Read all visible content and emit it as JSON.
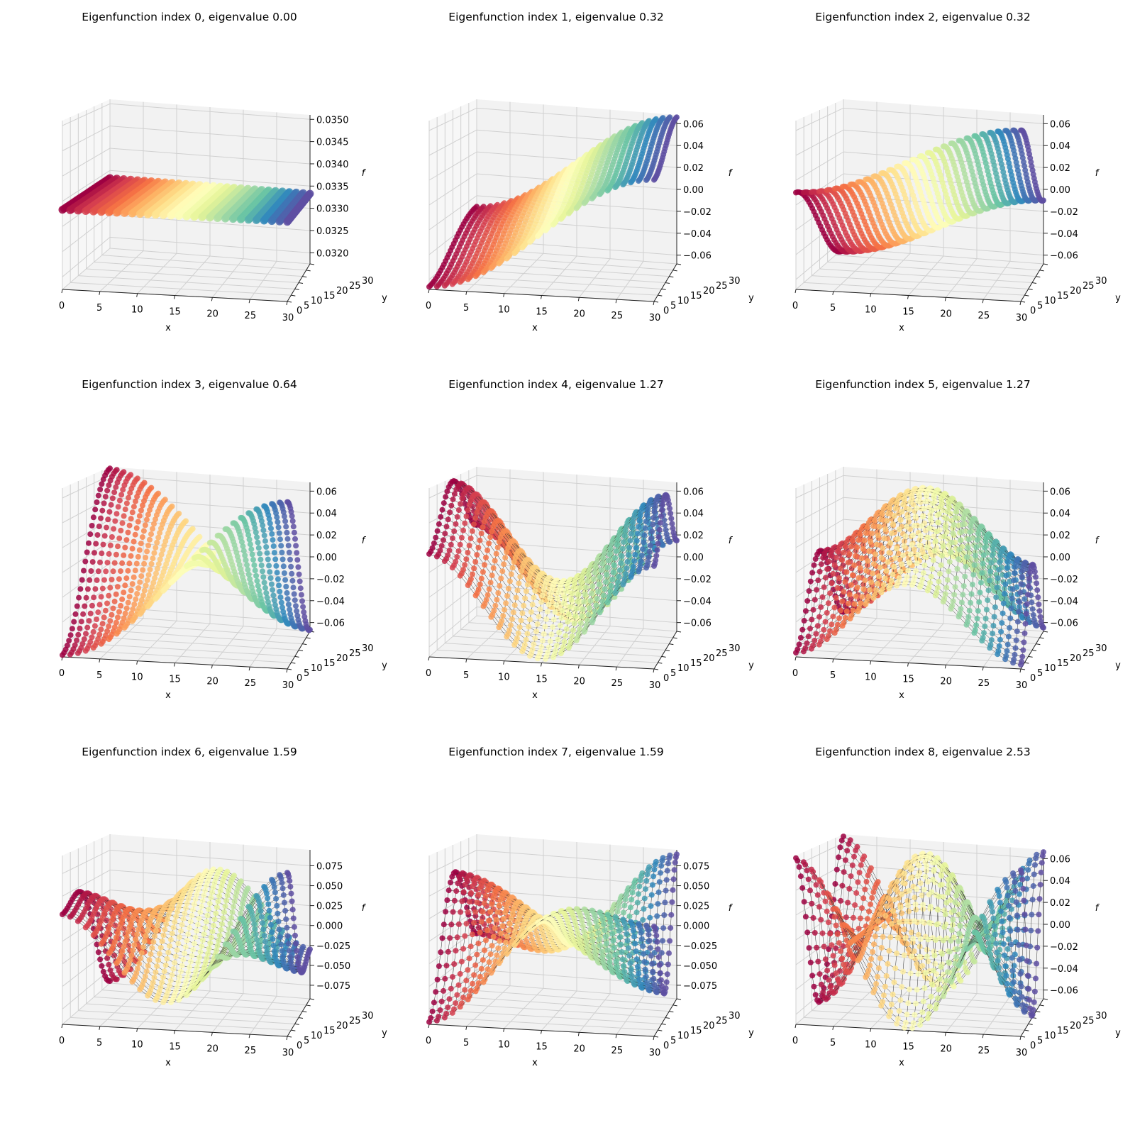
{
  "chart_data": {
    "type": "scatter",
    "subtype": "3d-scatter-grid",
    "grid_size": 30,
    "colormap": [
      "#9e0142",
      "#d53e4f",
      "#f46d43",
      "#fdae61",
      "#fee08b",
      "#ffffbf",
      "#e6f598",
      "#abdda4",
      "#66c2a5",
      "#3288bd",
      "#5e4fa2"
    ],
    "xlabel": "x",
    "ylabel": "y",
    "zlabel": "f",
    "x_ticks": [
      "0",
      "5",
      "10",
      "15",
      "20",
      "25",
      "30"
    ],
    "y_ticks": [
      "0",
      "5",
      "10",
      "15",
      "20",
      "25",
      "30"
    ],
    "panels": [
      {
        "title": "Eigenfunction index 0, eigenvalue 0.00",
        "index": 0,
        "eigenvalue": 0.0,
        "zlim": [
          0.03175,
          0.0351
        ],
        "z_ticks": [
          "0.0320",
          "0.0325",
          "0.0330",
          "0.0335",
          "0.0340",
          "0.0345",
          "0.0350"
        ],
        "z_tick_values": [
          0.032,
          0.0325,
          0.033,
          0.0335,
          0.034,
          0.0345,
          0.035
        ],
        "constant": 0.03333,
        "modes": [],
        "edges": false
      },
      {
        "title": "Eigenfunction index 1, eigenvalue 0.32",
        "index": 1,
        "eigenvalue": 0.32,
        "zlim": [
          -0.068,
          0.068
        ],
        "z_ticks": [
          "−0.06",
          "−0.04",
          "−0.02",
          "0.00",
          "0.02",
          "0.04",
          "0.06"
        ],
        "z_tick_values": [
          -0.06,
          -0.04,
          -0.02,
          0,
          0.02,
          0.04,
          0.06
        ],
        "constant": 0,
        "modes": [
          {
            "kx": 1,
            "ky": 0,
            "c": -0.048
          },
          {
            "kx": 0,
            "ky": 1,
            "c": -0.018
          }
        ],
        "edges": false
      },
      {
        "title": "Eigenfunction index 2, eigenvalue 0.32",
        "index": 2,
        "eigenvalue": 0.32,
        "zlim": [
          -0.068,
          0.068
        ],
        "z_ticks": [
          "−0.06",
          "−0.04",
          "−0.02",
          "0.00",
          "0.02",
          "0.04",
          "0.06"
        ],
        "z_tick_values": [
          -0.06,
          -0.04,
          -0.02,
          0,
          0.02,
          0.04,
          0.06
        ],
        "constant": 0,
        "modes": [
          {
            "kx": 1,
            "ky": 0,
            "c": -0.03
          },
          {
            "kx": 0,
            "ky": 1,
            "c": 0.04
          }
        ],
        "edges": false
      },
      {
        "title": "Eigenfunction index 3, eigenvalue 0.64",
        "index": 3,
        "eigenvalue": 0.64,
        "zlim": [
          -0.068,
          0.068
        ],
        "z_ticks": [
          "−0.06",
          "−0.04",
          "−0.02",
          "0.00",
          "0.02",
          "0.04",
          "0.06"
        ],
        "z_tick_values": [
          -0.06,
          -0.04,
          -0.02,
          0,
          0.02,
          0.04,
          0.06
        ],
        "constant": 0,
        "modes": [
          {
            "kx": 1,
            "ky": 1,
            "c": -0.0667
          }
        ],
        "edges": false
      },
      {
        "title": "Eigenfunction index 4, eigenvalue 1.27",
        "index": 4,
        "eigenvalue": 1.27,
        "zlim": [
          -0.068,
          0.068
        ],
        "z_ticks": [
          "−0.06",
          "−0.04",
          "−0.02",
          "0.00",
          "0.02",
          "0.04",
          "0.06"
        ],
        "z_tick_values": [
          -0.06,
          -0.04,
          -0.02,
          0,
          0.02,
          0.04,
          0.06
        ],
        "constant": 0,
        "modes": [
          {
            "kx": 2,
            "ky": 0,
            "c": 0.04
          },
          {
            "kx": 0,
            "ky": 2,
            "c": -0.025
          }
        ],
        "edges": true
      },
      {
        "title": "Eigenfunction index 5, eigenvalue 1.27",
        "index": 5,
        "eigenvalue": 1.27,
        "zlim": [
          -0.068,
          0.068
        ],
        "z_ticks": [
          "−0.06",
          "−0.04",
          "−0.02",
          "0.00",
          "0.02",
          "0.04",
          "0.06"
        ],
        "z_tick_values": [
          -0.06,
          -0.04,
          -0.02,
          0,
          0.02,
          0.04,
          0.06
        ],
        "constant": 0,
        "modes": [
          {
            "kx": 2,
            "ky": 0,
            "c": -0.03
          },
          {
            "kx": 0,
            "ky": 2,
            "c": -0.035
          }
        ],
        "edges": true
      },
      {
        "title": "Eigenfunction index 6, eigenvalue 1.59",
        "index": 6,
        "eigenvalue": 1.59,
        "zlim": [
          -0.092,
          0.095
        ],
        "z_ticks": [
          "−0.075",
          "−0.050",
          "−0.025",
          "0.000",
          "0.025",
          "0.050",
          "0.075"
        ],
        "z_tick_values": [
          -0.075,
          -0.05,
          -0.025,
          0,
          0.025,
          0.05,
          0.075
        ],
        "constant": 0,
        "modes": [
          {
            "kx": 2,
            "ky": 1,
            "c": 0.06
          },
          {
            "kx": 1,
            "ky": 2,
            "c": -0.03
          }
        ],
        "edges": true
      },
      {
        "title": "Eigenfunction index 7, eigenvalue 1.59",
        "index": 7,
        "eigenvalue": 1.59,
        "zlim": [
          -0.092,
          0.095
        ],
        "z_ticks": [
          "−0.075",
          "−0.050",
          "−0.025",
          "0.000",
          "0.025",
          "0.050",
          "0.075"
        ],
        "z_tick_values": [
          -0.075,
          -0.05,
          -0.025,
          0,
          0.025,
          0.05,
          0.075
        ],
        "constant": 0,
        "modes": [
          {
            "kx": 2,
            "ky": 1,
            "c": -0.03
          },
          {
            "kx": 1,
            "ky": 2,
            "c": -0.06
          }
        ],
        "edges": true
      },
      {
        "title": "Eigenfunction index 8, eigenvalue 2.53",
        "index": 8,
        "eigenvalue": 2.53,
        "zlim": [
          -0.068,
          0.068
        ],
        "z_ticks": [
          "−0.06",
          "−0.04",
          "−0.02",
          "0.00",
          "0.02",
          "0.04",
          "0.06"
        ],
        "z_tick_values": [
          -0.06,
          -0.04,
          -0.02,
          0,
          0.02,
          0.04,
          0.06
        ],
        "constant": 0,
        "modes": [
          {
            "kx": 2,
            "ky": 2,
            "c": 0.0667
          }
        ],
        "edges": true
      }
    ]
  }
}
